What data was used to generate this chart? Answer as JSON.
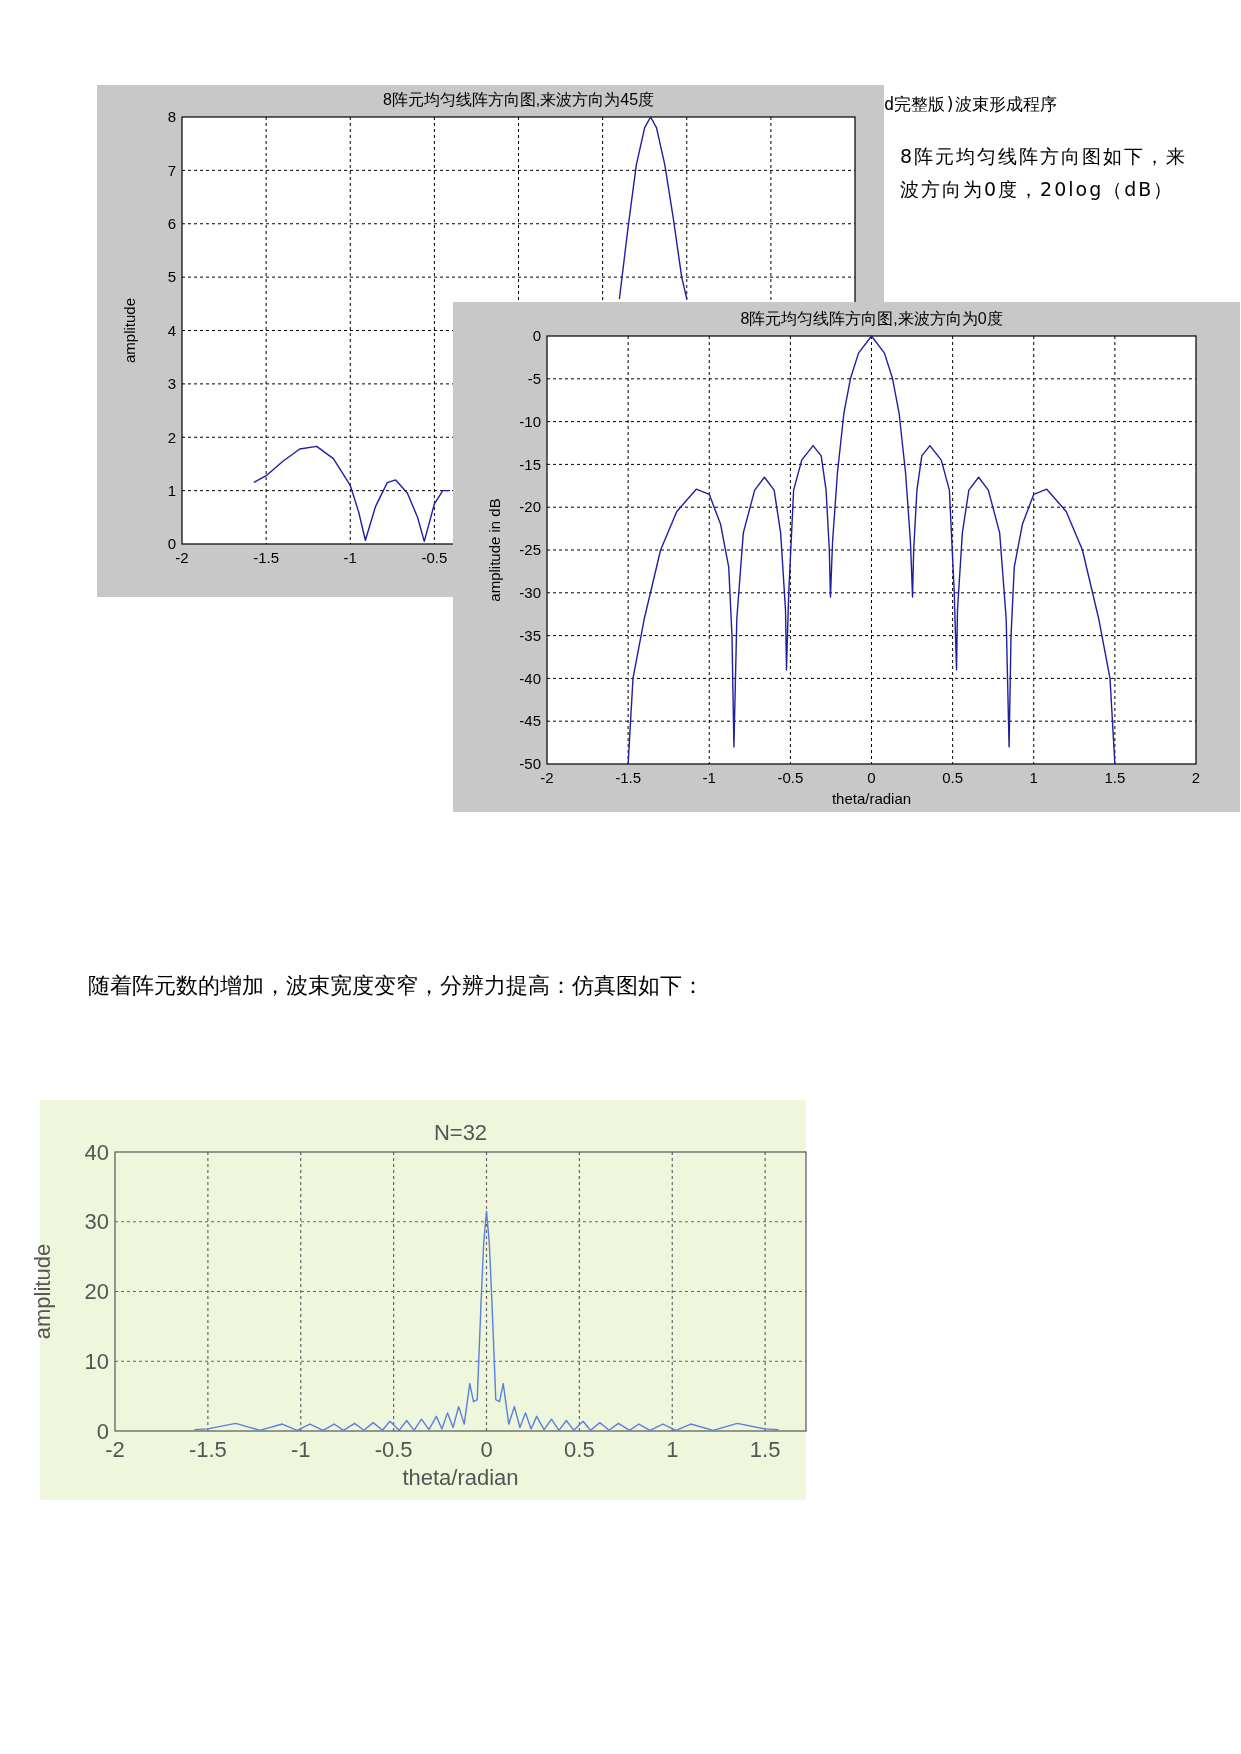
{
  "chart_data": [
    {
      "type": "line",
      "title": "8阵元均匀线阵方向图,来波方向为45度",
      "ylabel": "amplitude",
      "xlim": [
        -2,
        2
      ],
      "ylim": [
        0,
        8
      ],
      "xticks": [
        -2,
        -1.5,
        -1,
        -0.5,
        {
          "value": 0,
          "label": null
        },
        {
          "value": 0.5,
          "label": null
        },
        {
          "value": 1,
          "label": null
        },
        {
          "value": 1.5,
          "label": null
        }
      ],
      "yticks": [
        0,
        1,
        2,
        3,
        4,
        5,
        6,
        7,
        8
      ],
      "grid": true,
      "marker": "none",
      "line_style": "solid",
      "series": [
        {
          "color": "#1f1fa0",
          "x": [
            -1.57,
            -1.5,
            -1.4,
            -1.3,
            -1.2,
            -1.1,
            -1.0,
            -0.95,
            -0.91,
            -0.85,
            -0.78,
            -0.73,
            -0.66,
            -0.6,
            -0.56,
            -0.5,
            -0.45,
            -0.41
          ],
          "values": [
            1.16,
            1.28,
            1.55,
            1.78,
            1.83,
            1.6,
            1.1,
            0.6,
            0.07,
            0.7,
            1.15,
            1.2,
            0.95,
            0.5,
            0.05,
            0.75,
            1.0,
            1.0
          ]
        },
        {
          "color": "#1f1fa0",
          "x": [
            0.6,
            0.65,
            0.7,
            0.75,
            0.785,
            0.82,
            0.87,
            0.92,
            0.97,
            1.0
          ],
          "values": [
            4.6,
            5.9,
            7.1,
            7.8,
            8.0,
            7.8,
            7.1,
            6.1,
            5.0,
            4.6
          ]
        }
      ],
      "annotations": [
        "d完整版)波束形成程序"
      ]
    },
    {
      "type": "line",
      "title": "8阵元均匀线阵方向图,来波方向为0度",
      "xlabel": "theta/radian",
      "ylabel": "amplitude in dB",
      "xlim": [
        -2,
        2
      ],
      "ylim": [
        -50,
        0
      ],
      "xticks": [
        -2,
        -1.5,
        -1,
        -0.5,
        0,
        0.5,
        1,
        1.5,
        2
      ],
      "yticks": [
        -50,
        -45,
        -40,
        -35,
        -30,
        -25,
        -20,
        -15,
        -10,
        -5,
        0
      ],
      "grid": true,
      "marker": "none",
      "line_style": "solid",
      "series": [
        {
          "color": "#1f1fa0",
          "x": [
            -1.5,
            -1.47,
            -1.4,
            -1.3,
            -1.2,
            -1.08,
            -1.0,
            -0.93,
            -0.88,
            -0.86,
            -0.848,
            -0.83,
            -0.79,
            -0.72,
            -0.66,
            -0.6,
            -0.56,
            -0.53,
            -0.524,
            -0.51,
            -0.48,
            -0.43,
            -0.36,
            -0.31,
            -0.28,
            -0.26,
            -0.253,
            -0.24,
            -0.21,
            -0.17,
            -0.13,
            -0.08,
            0,
            0.08,
            0.13,
            0.17,
            0.21,
            0.24,
            0.253,
            0.26,
            0.28,
            0.31,
            0.36,
            0.43,
            0.48,
            0.51,
            0.524,
            0.53,
            0.56,
            0.6,
            0.66,
            0.72,
            0.79,
            0.83,
            0.848,
            0.86,
            0.88,
            0.93,
            1.0,
            1.08,
            1.2,
            1.3,
            1.4,
            1.47,
            1.5
          ],
          "values": [
            -50,
            -40,
            -33,
            -25,
            -20.5,
            -17.9,
            -18.5,
            -22,
            -27,
            -35,
            -48,
            -33,
            -23,
            -18,
            -16.5,
            -18,
            -23,
            -32,
            -39,
            -30,
            -18,
            -14.5,
            -12.8,
            -14,
            -18,
            -25,
            -30.5,
            -24,
            -16,
            -9,
            -5,
            -2,
            0,
            -2,
            -5,
            -9,
            -16,
            -24,
            -30.5,
            -25,
            -18,
            -14,
            -12.8,
            -14.5,
            -18,
            -30,
            -39,
            -32,
            -23,
            -18,
            -16.5,
            -18,
            -23,
            -33,
            -48,
            -35,
            -27,
            -22,
            -18.5,
            -17.9,
            -20.5,
            -25,
            -33,
            -40,
            -50
          ]
        }
      ],
      "annotations": [
        "8阵元均匀线阵方向图如下，来波方向为0度，20log（dB）"
      ]
    },
    {
      "type": "line",
      "title": "N=32",
      "xlabel": "theta/radian",
      "ylabel": "amplitude",
      "xlim": [
        -2,
        1.72
      ],
      "ylim": [
        0,
        40
      ],
      "xticks": [
        -2,
        -1.5,
        -1,
        -0.5,
        0,
        0.5,
        1,
        1.5
      ],
      "yticks": [
        0,
        10,
        20,
        30,
        40
      ],
      "grid": true,
      "marker": "none",
      "line_style": "solid",
      "series": [
        {
          "color": "#5b7fe0",
          "x": [
            -1.57,
            -1.5,
            -1.35,
            -1.22,
            -1.1,
            -1.02,
            -0.95,
            -0.88,
            -0.82,
            -0.77,
            -0.71,
            -0.66,
            -0.61,
            -0.56,
            -0.52,
            -0.47,
            -0.43,
            -0.39,
            -0.35,
            -0.31,
            -0.27,
            -0.24,
            -0.21,
            -0.18,
            -0.15,
            -0.12,
            -0.09,
            -0.07,
            -0.05,
            -0.03,
            -0.015,
            0,
            0.015,
            0.03,
            0.05,
            0.07,
            0.09,
            0.12,
            0.15,
            0.18,
            0.21,
            0.24,
            0.27,
            0.31,
            0.35,
            0.39,
            0.43,
            0.47,
            0.52,
            0.56,
            0.61,
            0.66,
            0.71,
            0.77,
            0.82,
            0.88,
            0.95,
            1.02,
            1.1,
            1.22,
            1.35,
            1.5,
            1.57
          ],
          "values": [
            0.2,
            0.3,
            1.1,
            0.1,
            1.0,
            0.1,
            1.0,
            0.1,
            1.0,
            0.1,
            1.1,
            0.1,
            1.2,
            0.1,
            1.4,
            0.1,
            1.5,
            0.1,
            1.7,
            0.2,
            2.1,
            0.3,
            2.6,
            0.5,
            3.5,
            1.0,
            6.8,
            4.2,
            4.5,
            18,
            27,
            31.5,
            27,
            18,
            4.5,
            4.2,
            6.8,
            1.0,
            3.5,
            0.5,
            2.6,
            0.3,
            2.1,
            0.2,
            1.7,
            0.1,
            1.5,
            0.1,
            1.4,
            0.1,
            1.2,
            0.1,
            1.1,
            0.1,
            1.0,
            0.1,
            1.0,
            0.1,
            1.0,
            0.1,
            1.1,
            0.3,
            0.2
          ]
        }
      ],
      "annotations": [
        "随着阵元数的增加，波束宽度变窄，分辨力提高：仿真图如下："
      ]
    }
  ]
}
